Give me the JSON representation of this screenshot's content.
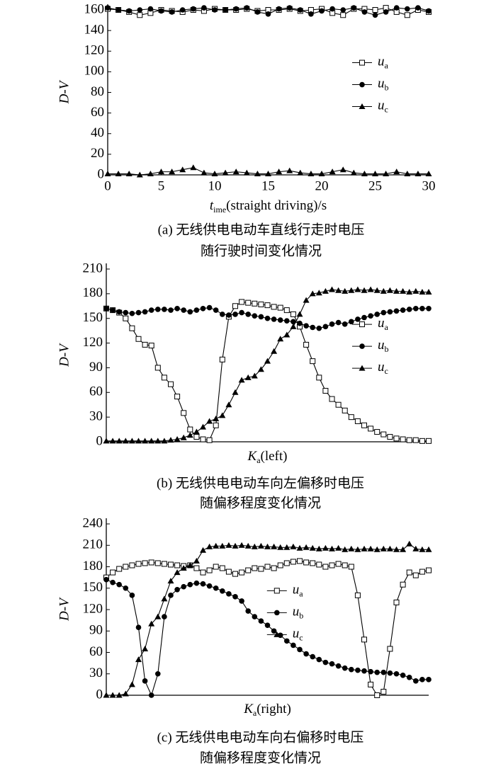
{
  "chart_data": [
    {
      "type": "line",
      "y_label": "D-V",
      "x_label": "time(straight driving)/s",
      "caption": [
        "(a) 无线供电电动车直线行走时电压",
        "随行驶时间变化情况"
      ],
      "x": [
        0,
        1,
        2,
        3,
        4,
        5,
        6,
        7,
        8,
        9,
        10,
        11,
        12,
        13,
        14,
        15,
        16,
        17,
        18,
        19,
        20,
        21,
        22,
        23,
        24,
        25,
        26,
        27,
        28,
        29,
        30
      ],
      "xlim": [
        0,
        30
      ],
      "xticks": [
        0,
        5,
        10,
        15,
        20,
        25,
        30
      ],
      "ylim": [
        0,
        160
      ],
      "yticks": [
        0,
        20,
        40,
        60,
        80,
        100,
        120,
        140,
        160
      ],
      "legend": "center-right",
      "series": [
        {
          "name": "ua",
          "color": "#000000",
          "marker": "square",
          "values": [
            161,
            160,
            158,
            155,
            157,
            160,
            159,
            158,
            160,
            159,
            161,
            160,
            160,
            161,
            159,
            160,
            160,
            161,
            159,
            160,
            161,
            157,
            155,
            161,
            161,
            160,
            162,
            158,
            155,
            160,
            158
          ]
        },
        {
          "name": "ub",
          "color": "#000000",
          "marker": "circle",
          "values": [
            162,
            160,
            159,
            160,
            161,
            159,
            158,
            160,
            161,
            162,
            160,
            160,
            161,
            162,
            158,
            156,
            161,
            162,
            160,
            156,
            159,
            161,
            160,
            162,
            158,
            155,
            158,
            162,
            161,
            162,
            159
          ]
        },
        {
          "name": "uc",
          "color": "#000000",
          "marker": "triangle",
          "values": [
            1,
            1,
            1,
            0,
            1,
            3,
            3,
            5,
            7,
            2,
            1,
            2,
            3,
            2,
            1,
            1,
            3,
            4,
            2,
            1,
            1,
            3,
            5,
            2,
            1,
            1,
            1,
            3,
            1,
            1,
            1
          ]
        }
      ]
    },
    {
      "type": "line",
      "y_label": "D-V",
      "x_label": "Ka(left)",
      "caption": [
        "(b) 无线供电电动车向左偏移时电压",
        "随偏移程度变化情况"
      ],
      "ylim": [
        0,
        210
      ],
      "yticks": [
        0,
        30,
        60,
        90,
        120,
        150,
        180,
        210
      ],
      "legend": "center-right",
      "series": [
        {
          "name": "ua",
          "color": "#000000",
          "marker": "square",
          "values": [
            162,
            160,
            157,
            150,
            138,
            125,
            118,
            117,
            90,
            78,
            70,
            55,
            35,
            15,
            6,
            3,
            2,
            20,
            100,
            152,
            165,
            170,
            169,
            168,
            167,
            166,
            164,
            163,
            160,
            155,
            140,
            118,
            98,
            78,
            62,
            52,
            45,
            38,
            30,
            25,
            20,
            16,
            12,
            9,
            6,
            4,
            3,
            2,
            2,
            1,
            1
          ]
        },
        {
          "name": "ub",
          "color": "#000000",
          "marker": "circle",
          "values": [
            162,
            160,
            158,
            157,
            156,
            157,
            158,
            160,
            161,
            161,
            160,
            162,
            160,
            158,
            160,
            162,
            163,
            160,
            155,
            154,
            155,
            157,
            155,
            153,
            152,
            150,
            149,
            148,
            147,
            146,
            144,
            141,
            139,
            138,
            140,
            143,
            145,
            143,
            146,
            149,
            151,
            153,
            155,
            157,
            158,
            159,
            160,
            161,
            162,
            162,
            162
          ]
        },
        {
          "name": "uc",
          "color": "#000000",
          "marker": "triangle",
          "values": [
            1,
            1,
            1,
            1,
            1,
            1,
            1,
            1,
            1,
            1,
            2,
            3,
            5,
            8,
            12,
            18,
            25,
            28,
            32,
            45,
            60,
            75,
            78,
            80,
            88,
            98,
            110,
            125,
            130,
            140,
            155,
            172,
            180,
            181,
            183,
            185,
            184,
            183,
            184,
            185,
            184,
            185,
            184,
            183,
            184,
            183,
            183,
            182,
            183,
            182,
            182
          ]
        }
      ]
    },
    {
      "type": "line",
      "y_label": "D-V",
      "x_label": "Ka(right)",
      "caption": [
        "(c) 无线供电电动车向右偏移时电压",
        "随偏移程度变化情况"
      ],
      "ylim": [
        0,
        240
      ],
      "yticks": [
        0,
        30,
        60,
        90,
        120,
        150,
        180,
        210,
        240
      ],
      "legend": "center",
      "series": [
        {
          "name": "ua",
          "color": "#000000",
          "marker": "square",
          "values": [
            165,
            172,
            177,
            180,
            182,
            184,
            185,
            186,
            185,
            184,
            183,
            182,
            181,
            182,
            178,
            172,
            175,
            180,
            178,
            173,
            170,
            172,
            175,
            178,
            177,
            180,
            178,
            182,
            185,
            187,
            188,
            186,
            185,
            183,
            180,
            182,
            184,
            182,
            180,
            140,
            78,
            15,
            0,
            5,
            65,
            130,
            155,
            172,
            168,
            173,
            175
          ]
        },
        {
          "name": "ub",
          "color": "#000000",
          "marker": "circle",
          "values": [
            162,
            158,
            155,
            150,
            140,
            95,
            20,
            0,
            30,
            110,
            140,
            148,
            152,
            155,
            157,
            156,
            153,
            150,
            146,
            142,
            138,
            132,
            118,
            110,
            104,
            98,
            90,
            84,
            76,
            70,
            64,
            58,
            54,
            50,
            46,
            44,
            41,
            38,
            36,
            35,
            34,
            33,
            32,
            32,
            31,
            30,
            28,
            25,
            20,
            22,
            22
          ]
        },
        {
          "name": "uc",
          "color": "#000000",
          "marker": "triangle",
          "values": [
            0,
            0,
            0,
            2,
            15,
            50,
            65,
            100,
            110,
            135,
            160,
            172,
            178,
            182,
            188,
            203,
            208,
            209,
            209,
            210,
            209,
            210,
            209,
            208,
            209,
            208,
            208,
            207,
            207,
            208,
            206,
            207,
            206,
            205,
            206,
            205,
            206,
            204,
            205,
            204,
            205,
            205,
            204,
            205,
            205,
            204,
            204,
            212,
            205,
            204,
            204
          ]
        }
      ]
    }
  ]
}
